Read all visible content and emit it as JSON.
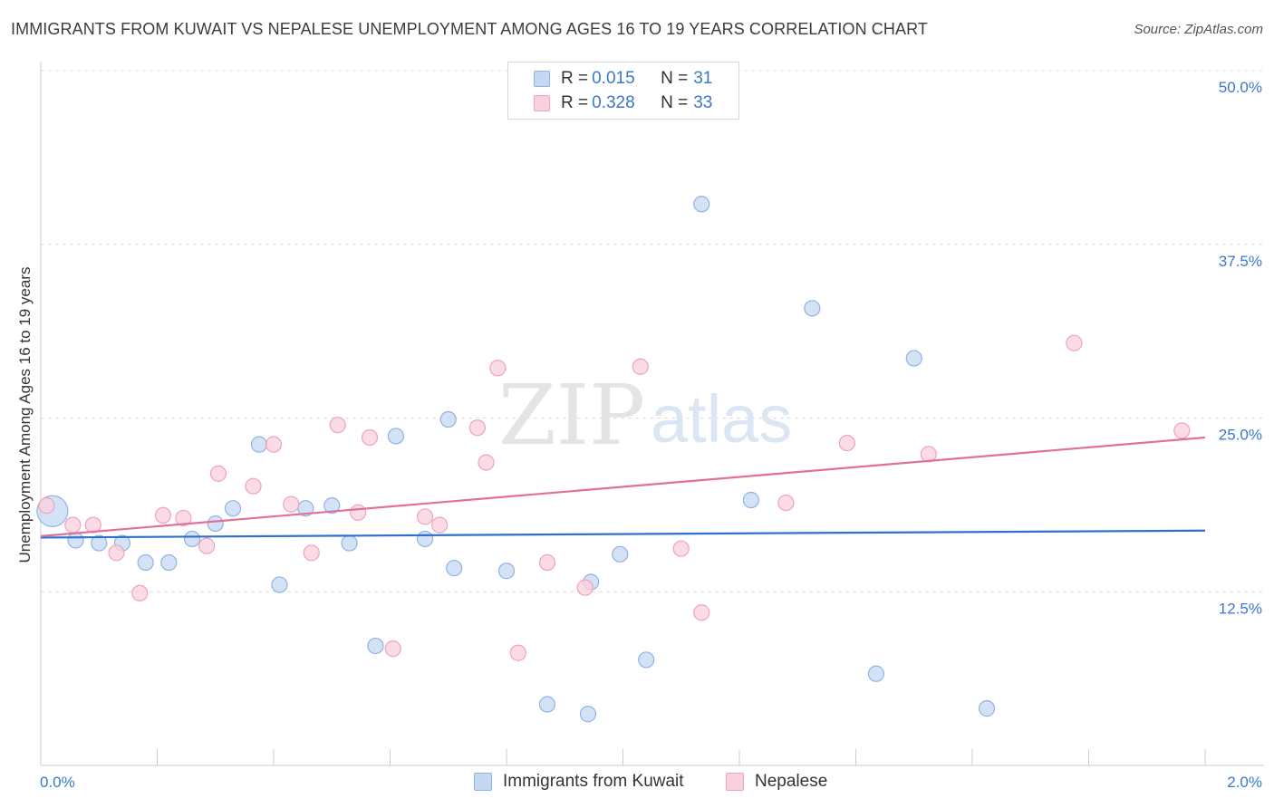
{
  "header": {
    "title": "IMMIGRANTS FROM KUWAIT VS NEPALESE UNEMPLOYMENT AMONG AGES 16 TO 19 YEARS CORRELATION CHART",
    "source": "Source: ZipAtlas.com"
  },
  "watermark": {
    "zip": "ZIP",
    "atlas": "atlas"
  },
  "legend": {
    "kuwait": {
      "r_label": "R = ",
      "r_value": "0.015",
      "n_label": "N = ",
      "n_value": "31"
    },
    "nepalese": {
      "r_label": "R = ",
      "r_value": "0.328",
      "n_label": "N = ",
      "n_value": "33"
    }
  },
  "colors": {
    "kuwait_fill": "#c5d8f3",
    "kuwait_stroke": "#8fb3e4",
    "kuwait_line": "#2e6fcf",
    "nepalese_fill": "#f9d0dd",
    "nepalese_stroke": "#eea3bb",
    "nepalese_line": "#e0709a",
    "tick_text": "#3b78c9",
    "grid": "#dcdcdc"
  },
  "chart_data": {
    "type": "scatter",
    "title": "IMMIGRANTS FROM KUWAIT VS NEPALESE UNEMPLOYMENT AMONG AGES 16 TO 19 YEARS CORRELATION CHART",
    "xlabel": "",
    "ylabel": "Unemployment Among Ages 16 to 19 years",
    "xlim": [
      0,
      2
    ],
    "ylim": [
      0,
      50
    ],
    "x_ticks": [
      "0.0%",
      "2.0%"
    ],
    "y_ticks": [
      "12.5%",
      "25.0%",
      "37.5%",
      "50.0%"
    ],
    "y_tick_values": [
      12.5,
      25,
      37.5,
      50
    ],
    "grid": true,
    "legend_position": "top-center",
    "series": [
      {
        "name": "Immigrants from Kuwait",
        "r": 0.015,
        "n": 31,
        "trend": [
          [
            0,
            16.4
          ],
          [
            2,
            16.9
          ]
        ],
        "points": [
          [
            0.02,
            18.3,
            "large"
          ],
          [
            0.06,
            16.2
          ],
          [
            0.1,
            16.0
          ],
          [
            0.14,
            16.0
          ],
          [
            0.18,
            14.6
          ],
          [
            0.22,
            14.6
          ],
          [
            0.26,
            16.3
          ],
          [
            0.3,
            17.4
          ],
          [
            0.33,
            18.5
          ],
          [
            0.375,
            23.1
          ],
          [
            0.41,
            13.0
          ],
          [
            0.455,
            18.5
          ],
          [
            0.5,
            18.7
          ],
          [
            0.53,
            16.0
          ],
          [
            0.575,
            8.6
          ],
          [
            0.61,
            23.7
          ],
          [
            0.66,
            16.3
          ],
          [
            0.7,
            24.9
          ],
          [
            0.71,
            14.2
          ],
          [
            0.8,
            14.0
          ],
          [
            0.87,
            4.4
          ],
          [
            0.94,
            3.7
          ],
          [
            0.945,
            13.2
          ],
          [
            0.995,
            15.2
          ],
          [
            1.04,
            7.6
          ],
          [
            1.135,
            40.4
          ],
          [
            1.22,
            19.1
          ],
          [
            1.325,
            32.9
          ],
          [
            1.435,
            6.6
          ],
          [
            1.5,
            29.3
          ],
          [
            1.625,
            4.1
          ]
        ]
      },
      {
        "name": "Nepalese",
        "r": 0.328,
        "n": 33,
        "trend": [
          [
            0,
            16.5
          ],
          [
            2,
            23.6
          ]
        ],
        "points": [
          [
            0.01,
            18.7
          ],
          [
            0.055,
            17.3
          ],
          [
            0.09,
            17.3
          ],
          [
            0.13,
            15.3
          ],
          [
            0.17,
            12.4
          ],
          [
            0.21,
            18.0
          ],
          [
            0.245,
            17.8
          ],
          [
            0.285,
            15.8
          ],
          [
            0.305,
            21.0
          ],
          [
            0.365,
            20.1
          ],
          [
            0.4,
            23.1
          ],
          [
            0.43,
            18.8
          ],
          [
            0.465,
            15.3
          ],
          [
            0.51,
            24.5
          ],
          [
            0.545,
            18.2
          ],
          [
            0.565,
            23.6
          ],
          [
            0.605,
            8.4
          ],
          [
            0.66,
            17.9
          ],
          [
            0.685,
            17.3
          ],
          [
            0.75,
            24.3
          ],
          [
            0.765,
            21.8
          ],
          [
            0.785,
            28.6
          ],
          [
            0.82,
            8.1
          ],
          [
            0.87,
            14.6
          ],
          [
            0.935,
            12.8
          ],
          [
            1.03,
            28.7
          ],
          [
            1.1,
            15.6
          ],
          [
            1.135,
            11.0
          ],
          [
            1.28,
            18.9
          ],
          [
            1.385,
            23.2
          ],
          [
            1.525,
            22.4
          ],
          [
            1.775,
            30.4
          ],
          [
            1.96,
            24.1
          ]
        ]
      }
    ]
  },
  "bottom_legend": {
    "kuwait": "Immigrants from Kuwait",
    "nepalese": "Nepalese"
  }
}
